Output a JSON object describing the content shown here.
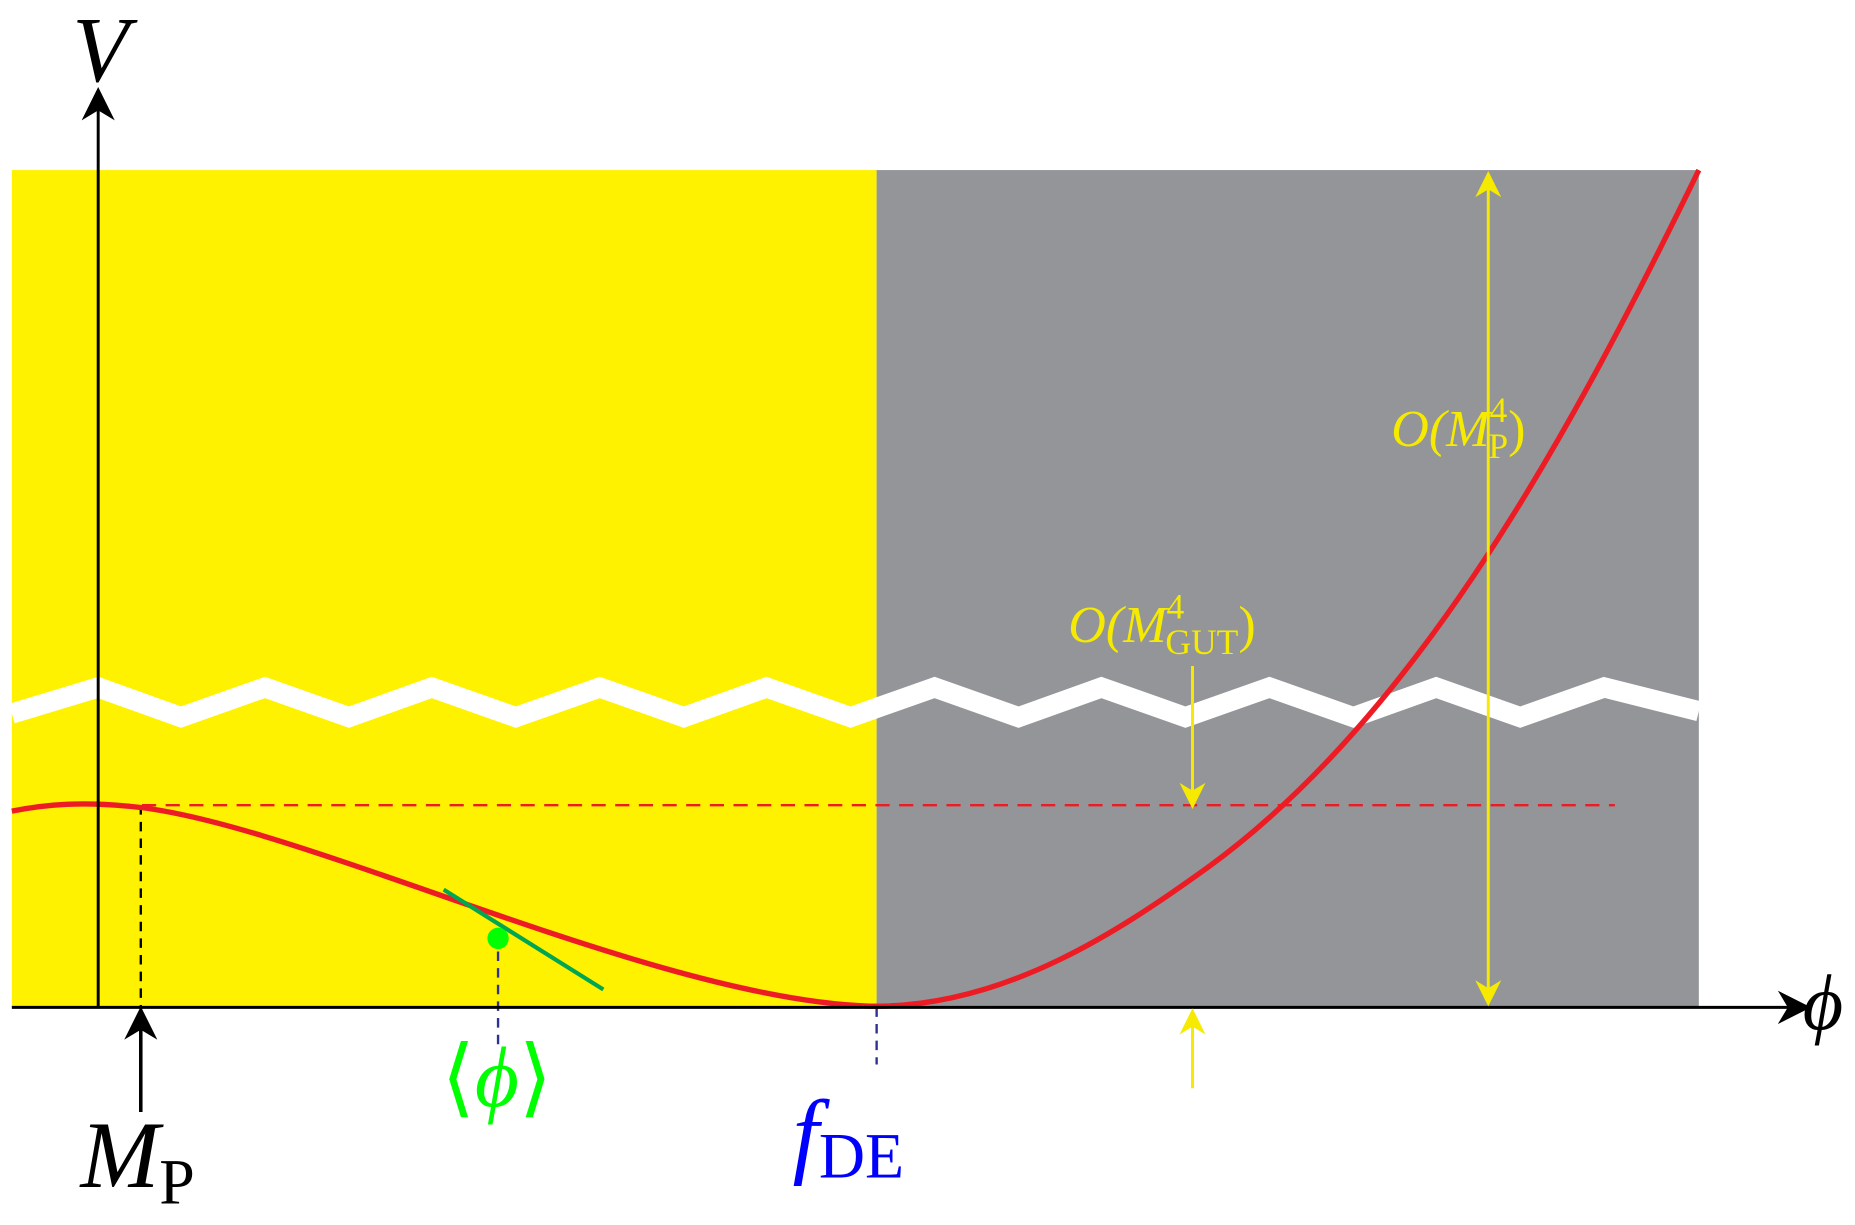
{
  "axes": {
    "y_label": "V",
    "x_label": "ϕ"
  },
  "labels": {
    "planck_mass": {
      "main": "M",
      "sub": "P"
    },
    "vev": {
      "open": "⟨",
      "main": "ϕ",
      "close": "⟩"
    },
    "decay_constant": {
      "main": "f",
      "sub": "DE"
    },
    "planck_scale": {
      "open": "O(M",
      "sup": "4",
      "sub": "P",
      "close": ")"
    },
    "gut_scale": {
      "open": "O(M",
      "sup": "4",
      "sub": "GUT",
      "close": ")"
    }
  }
}
